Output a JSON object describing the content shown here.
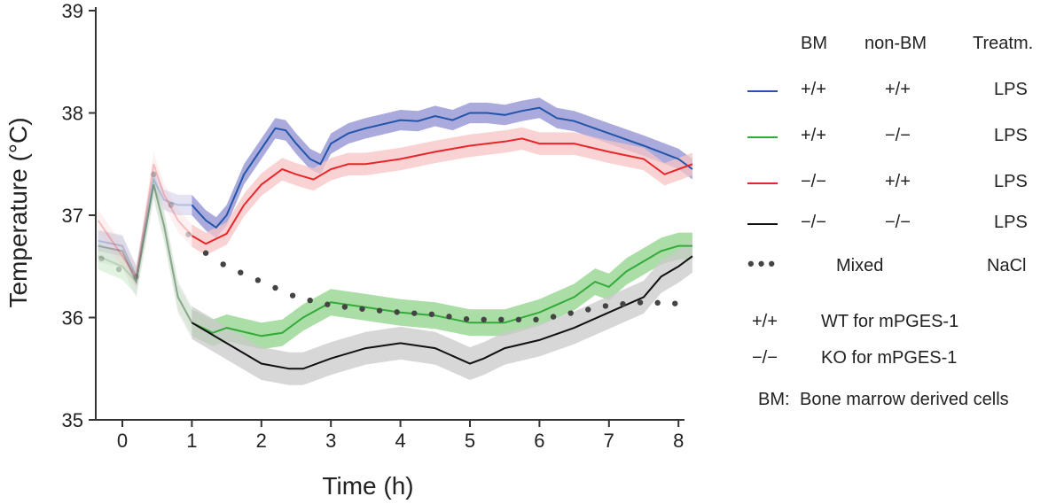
{
  "chart_data": {
    "type": "line",
    "xlabel": "Time (h)",
    "ylabel": "Temperature (°C)",
    "xlim": [
      -0.38,
      8.2
    ],
    "ylim": [
      35,
      39
    ],
    "xticks": [
      0,
      1,
      2,
      3,
      4,
      5,
      6,
      7,
      8
    ],
    "yticks": [
      35,
      36,
      37,
      38,
      39
    ],
    "grid": false,
    "legend_placement": "right",
    "legend_headers": [
      "BM",
      "non-BM",
      "Treatm."
    ],
    "series": [
      {
        "key": "wt_wt",
        "bm": "+/+",
        "nonbm": "+/+",
        "treat": "LPS",
        "color": "#2255aa",
        "band_color": "#8e8fd0",
        "band": 0.1,
        "style": "solid",
        "x": [
          -0.35,
          0,
          0.2,
          0.45,
          0.6,
          0.8,
          1,
          1.2,
          1.35,
          1.5,
          1.75,
          2,
          2.2,
          2.35,
          2.5,
          2.7,
          2.85,
          3,
          3.25,
          3.5,
          4,
          4.25,
          4.5,
          4.75,
          5,
          5.25,
          5.5,
          5.75,
          6,
          6.25,
          6.5,
          7,
          7.5,
          8,
          8.2
        ],
        "y": [
          36.75,
          36.7,
          36.4,
          37.35,
          37.15,
          37.1,
          37.1,
          36.95,
          36.88,
          37.0,
          37.4,
          37.65,
          37.85,
          37.83,
          37.7,
          37.55,
          37.5,
          37.7,
          37.8,
          37.85,
          37.93,
          37.92,
          37.97,
          37.93,
          38.0,
          38.0,
          37.98,
          38.02,
          38.05,
          37.95,
          37.92,
          37.8,
          37.68,
          37.55,
          37.45
        ]
      },
      {
        "key": "wt_ko",
        "bm": "+/+",
        "nonbm": "−/−",
        "treat": "LPS",
        "color": "#33aa3a",
        "band_color": "#8fd18a",
        "band": 0.13,
        "style": "solid",
        "x": [
          -0.35,
          0,
          0.2,
          0.45,
          0.6,
          0.8,
          1,
          1.3,
          1.5,
          2,
          2.3,
          2.6,
          3,
          3.5,
          4,
          4.5,
          5,
          5.5,
          6,
          6.5,
          6.8,
          7,
          7.25,
          7.5,
          7.75,
          8,
          8.2
        ],
        "y": [
          36.6,
          36.5,
          36.35,
          37.3,
          36.9,
          36.2,
          35.95,
          35.85,
          35.9,
          35.82,
          35.85,
          36.0,
          36.15,
          36.1,
          36.05,
          36.02,
          35.95,
          35.95,
          36.05,
          36.2,
          36.35,
          36.3,
          36.45,
          36.55,
          36.65,
          36.7,
          36.7
        ]
      },
      {
        "key": "ko_wt",
        "bm": "−/−",
        "nonbm": "+/+",
        "treat": "LPS",
        "color": "#e8262a",
        "band_color": "#f7c4c6",
        "band": 0.11,
        "style": "solid",
        "x": [
          -0.35,
          0,
          0.2,
          0.45,
          0.6,
          0.8,
          1,
          1.2,
          1.5,
          1.75,
          2,
          2.3,
          2.5,
          2.75,
          3,
          3.25,
          3.5,
          4,
          4.5,
          5,
          5.5,
          5.75,
          6,
          6.5,
          7,
          7.5,
          7.8,
          8,
          8.2
        ],
        "y": [
          36.95,
          36.6,
          36.4,
          37.5,
          37.2,
          36.95,
          36.8,
          36.72,
          36.82,
          37.1,
          37.3,
          37.45,
          37.4,
          37.35,
          37.45,
          37.5,
          37.5,
          37.55,
          37.62,
          37.68,
          37.72,
          37.75,
          37.7,
          37.7,
          37.62,
          37.55,
          37.4,
          37.45,
          37.5
        ]
      },
      {
        "key": "ko_ko",
        "bm": "−/−",
        "nonbm": "−/−",
        "treat": "LPS",
        "color": "#111111",
        "band_color": "#c9c9c9",
        "band": 0.16,
        "style": "solid",
        "x": [
          -0.35,
          0,
          0.2,
          0.45,
          0.6,
          0.8,
          1,
          1.5,
          2,
          2.4,
          2.6,
          3,
          3.5,
          4,
          4.5,
          5,
          5.2,
          5.5,
          6,
          6.5,
          7,
          7.5,
          7.75,
          8,
          8.2
        ],
        "y": [
          36.7,
          36.65,
          36.35,
          37.3,
          36.9,
          36.2,
          35.95,
          35.75,
          35.55,
          35.5,
          35.5,
          35.6,
          35.7,
          35.75,
          35.7,
          35.55,
          35.6,
          35.7,
          35.78,
          35.9,
          36.05,
          36.2,
          36.4,
          36.5,
          36.6
        ]
      },
      {
        "key": "nacl",
        "bm": "Mixed",
        "nonbm": "",
        "treat": "NaCl",
        "color": "#444444",
        "style": "dotted",
        "x": [
          -0.35,
          0,
          0.2,
          0.45,
          0.6,
          0.8,
          1,
          1.25,
          1.5,
          2,
          2.5,
          3,
          3.5,
          4,
          4.5,
          5,
          5.5,
          6,
          6.5,
          7,
          7.5,
          8.2
        ],
        "y": [
          36.6,
          36.45,
          36.4,
          37.4,
          37.2,
          37.0,
          36.75,
          36.6,
          36.5,
          36.35,
          36.2,
          36.12,
          36.08,
          36.05,
          36.03,
          35.98,
          35.98,
          35.98,
          36.05,
          36.12,
          36.15,
          36.13
        ]
      }
    ],
    "notes": [
      {
        "sym": "+/+",
        "text": "WT for mPGES-1"
      },
      {
        "sym": "−/−",
        "text": "KO for mPGES-1"
      },
      {
        "sym": "BM:",
        "text": "Bone marrow derived cells"
      }
    ]
  }
}
